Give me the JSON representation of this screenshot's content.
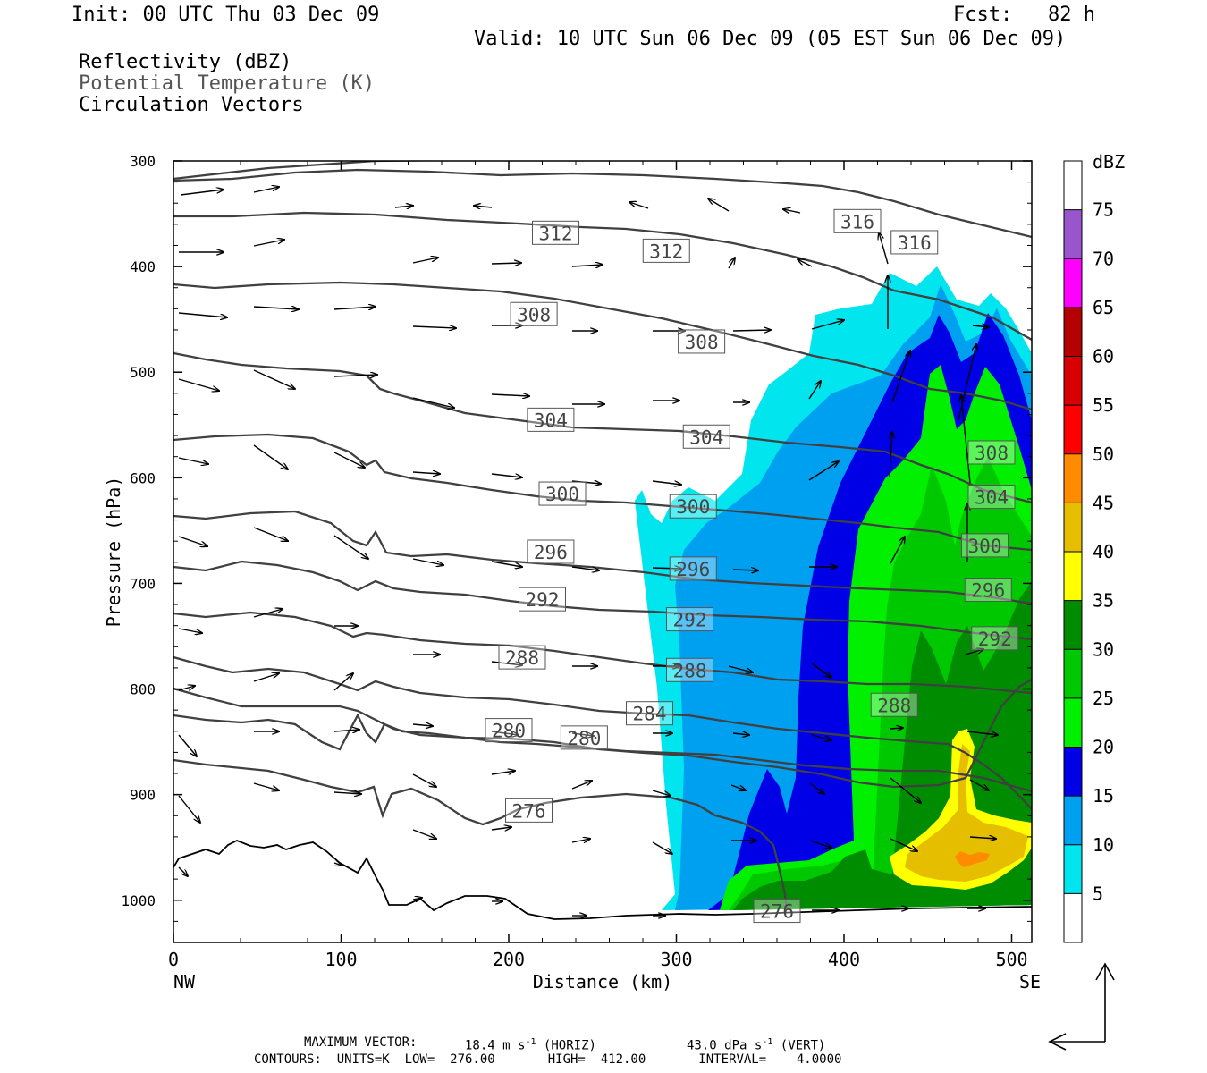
{
  "header": {
    "init": "Init: 00 UTC Thu 03 Dec 09",
    "fcst": "Fcst:   82 h",
    "valid": "Valid: 10 UTC Sun 06 Dec 09 (05 EST Sun 06 Dec 09)"
  },
  "fields": {
    "line1": "Reflectivity (dBZ)",
    "line2": "Potential Temperature (K)",
    "line3": "Circulation Vectors"
  },
  "footer": {
    "max_vector_label": "MAXIMUM VECTOR:",
    "horiz_value": "18.4 m s",
    "horiz_exp": "-1",
    "horiz_tag": "(HORIZ)",
    "vert_value": "43.0 dPa s",
    "vert_exp": "-1",
    "vert_tag": "(VERT)",
    "contours": "CONTOURS:  UNITS=K  LOW=  276.00       HIGH=  412.00       INTERVAL=    4.0000"
  },
  "chart_data": {
    "type": "cross-section",
    "xlabel": "Distance (km)",
    "ylabel": "Pressure (hPa)",
    "x_end_left": "NW",
    "x_end_right": "SE",
    "xlim": [
      0,
      512
    ],
    "ylim": [
      1040,
      300
    ],
    "x_ticks": [
      0,
      100,
      200,
      300,
      400,
      500
    ],
    "y_ticks": [
      300,
      400,
      500,
      600,
      700,
      800,
      900,
      1000
    ],
    "colorbar": {
      "title": "dBZ",
      "levels": [
        5,
        10,
        15,
        20,
        25,
        30,
        35,
        40,
        45,
        50,
        55,
        60,
        65,
        70,
        75
      ],
      "colors": [
        "#ffffff",
        "#00e5ee",
        "#00a0f0",
        "#0000e6",
        "#00f000",
        "#00c800",
        "#008c00",
        "#ffff00",
        "#e6be00",
        "#ff8c00",
        "#ff0000",
        "#d80000",
        "#b40000",
        "#ff00ff",
        "#9955cc",
        "#ffffff"
      ]
    },
    "theta_labels": [
      {
        "value": "316",
        "x": 408,
        "p": 357
      },
      {
        "value": "316",
        "x": 442,
        "p": 377
      },
      {
        "value": "312",
        "x": 228,
        "p": 368
      },
      {
        "value": "312",
        "x": 294,
        "p": 385
      },
      {
        "value": "308",
        "x": 215,
        "p": 445
      },
      {
        "value": "308",
        "x": 315,
        "p": 471
      },
      {
        "value": "308",
        "x": 488,
        "p": 576
      },
      {
        "value": "304",
        "x": 225,
        "p": 545
      },
      {
        "value": "304",
        "x": 318,
        "p": 561
      },
      {
        "value": "304",
        "x": 488,
        "p": 618
      },
      {
        "value": "300",
        "x": 232,
        "p": 615
      },
      {
        "value": "300",
        "x": 310,
        "p": 627
      },
      {
        "value": "300",
        "x": 484,
        "p": 664
      },
      {
        "value": "296",
        "x": 225,
        "p": 670
      },
      {
        "value": "296",
        "x": 310,
        "p": 686
      },
      {
        "value": "296",
        "x": 486,
        "p": 706
      },
      {
        "value": "292",
        "x": 220,
        "p": 715
      },
      {
        "value": "292",
        "x": 308,
        "p": 734
      },
      {
        "value": "292",
        "x": 490,
        "p": 752
      },
      {
        "value": "288",
        "x": 208,
        "p": 770
      },
      {
        "value": "288",
        "x": 308,
        "p": 782
      },
      {
        "value": "288",
        "x": 430,
        "p": 815
      },
      {
        "value": "284",
        "x": 284,
        "p": 823
      },
      {
        "value": "280",
        "x": 200,
        "p": 839
      },
      {
        "value": "280",
        "x": 245,
        "p": 846
      },
      {
        "value": "276",
        "x": 212,
        "p": 915
      },
      {
        "value": "276",
        "x": 360,
        "p": 1010
      }
    ]
  }
}
